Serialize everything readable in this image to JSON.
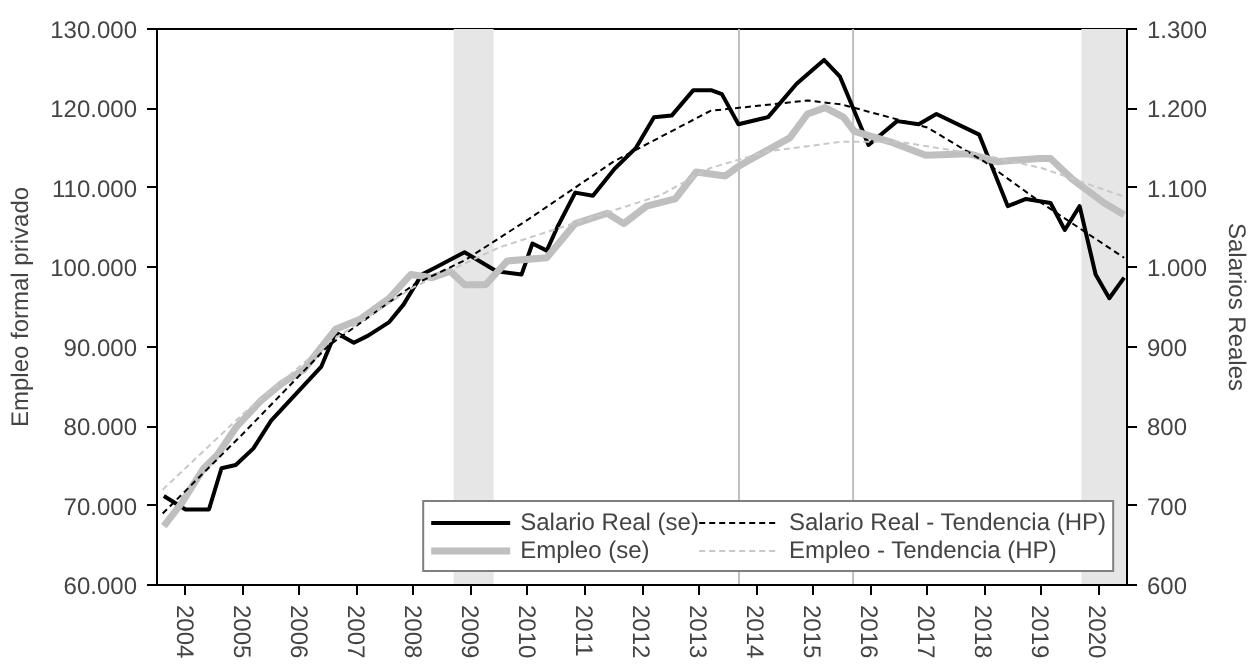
{
  "chart_data": {
    "type": "line",
    "xlabel": null,
    "ylabel": "Empleo formal privado",
    "y2label": "Salarios Reales",
    "xlim": [
      2004.0,
      2021.0
    ],
    "xticks": [
      {
        "value": 2004.5,
        "label": "2004"
      },
      {
        "value": 2005.5,
        "label": "2005"
      },
      {
        "value": 2006.5,
        "label": "2006"
      },
      {
        "value": 2007.5,
        "label": "2007"
      },
      {
        "value": 2008.5,
        "label": "2008"
      },
      {
        "value": 2009.5,
        "label": "2009"
      },
      {
        "value": 2010.5,
        "label": "2010"
      },
      {
        "value": 2011.5,
        "label": "2011"
      },
      {
        "value": 2012.5,
        "label": "2012"
      },
      {
        "value": 2013.5,
        "label": "2013"
      },
      {
        "value": 2014.5,
        "label": "2014"
      },
      {
        "value": 2015.5,
        "label": "2015"
      },
      {
        "value": 2016.5,
        "label": "2016"
      },
      {
        "value": 2017.5,
        "label": "2017"
      },
      {
        "value": 2018.5,
        "label": "2018"
      },
      {
        "value": 2019.5,
        "label": "2019"
      },
      {
        "value": 2020.5,
        "label": "2020"
      }
    ],
    "ylim": [
      60000,
      130000
    ],
    "yticks": [
      {
        "value": 60000,
        "label": "60.000"
      },
      {
        "value": 70000,
        "label": "70.000"
      },
      {
        "value": 80000,
        "label": "80.000"
      },
      {
        "value": 90000,
        "label": "90.000"
      },
      {
        "value": 100000,
        "label": "100.000"
      },
      {
        "value": 110000,
        "label": "110.000"
      },
      {
        "value": 120000,
        "label": "120.000"
      },
      {
        "value": 130000,
        "label": "130.000"
      }
    ],
    "y2lim": [
      600,
      1300
    ],
    "y2ticks": [
      600,
      700,
      800,
      900,
      {
        "value": 1000,
        "label": "1.000"
      },
      {
        "value": 1100,
        "label": "1.100"
      },
      {
        "value": 1200,
        "label": "1.200"
      },
      {
        "value": 1300,
        "label": "1.300"
      }
    ],
    "grid": false,
    "legend": "bottom right",
    "marker": "none",
    "bands": [
      {
        "axis": "x",
        "from": 2009.2,
        "to": 2009.9,
        "color": "#e6e6e6"
      },
      {
        "axis": "x",
        "from": 2020.2,
        "to": 2021.0,
        "color": "#e6e6e6"
      }
    ],
    "ref_lines": [
      {
        "axis": "x",
        "value": 2014.2,
        "color": "#c0c0c0"
      },
      {
        "axis": "x",
        "value": 2016.2,
        "color": "#c0c0c0"
      }
    ],
    "series": [
      {
        "name": "Salario Real (se)",
        "color": "#000000",
        "axis": "y2",
        "line_style": "solid",
        "x": [
          2004.12,
          2004.5,
          2004.91,
          2005.13,
          2005.38,
          2005.69,
          2006.0,
          2006.44,
          2006.88,
          2007.13,
          2007.45,
          2007.7,
          2008.07,
          2008.32,
          2008.64,
          2008.89,
          2009.39,
          2009.95,
          2010.39,
          2010.58,
          2010.83,
          2011.02,
          2011.33,
          2011.64,
          2012.02,
          2012.39,
          2012.71,
          2013.02,
          2013.4,
          2013.71,
          2013.9,
          2014.19,
          2014.71,
          2015.21,
          2015.69,
          2015.97,
          2016.47,
          2016.97,
          2017.35,
          2017.66,
          2018.41,
          2018.91,
          2019.23,
          2019.66,
          2019.91,
          2020.17,
          2020.45,
          2020.69,
          2020.95
        ],
        "values": [
          712,
          695,
          695,
          747,
          751,
          772,
          807,
          841,
          875,
          918,
          905,
          914,
          931,
          953,
          991,
          1000,
          1019,
          995,
          991,
          1030,
          1021,
          1051,
          1094,
          1090,
          1124,
          1150,
          1189,
          1191,
          1223,
          1223,
          1218,
          1180,
          1189,
          1231,
          1261,
          1240,
          1154,
          1184,
          1180,
          1193,
          1167,
          1077,
          1086,
          1081,
          1047,
          1077,
          991,
          961,
          987
        ]
      },
      {
        "name": "Empleo (se)",
        "color": "#bfbfbf",
        "line_style": "solid",
        "x": [
          2004.12,
          2004.44,
          2004.82,
          2005.06,
          2005.38,
          2005.82,
          2006.19,
          2006.57,
          2007.13,
          2007.57,
          2008.07,
          2008.45,
          2008.82,
          2009.14,
          2009.39,
          2009.76,
          2010.14,
          2010.83,
          2011.33,
          2011.89,
          2012.18,
          2012.58,
          2013.08,
          2013.45,
          2013.96,
          2014.21,
          2014.71,
          2015.09,
          2015.4,
          2015.71,
          2016.03,
          2016.22,
          2016.85,
          2017.47,
          2018.22,
          2018.72,
          2019.47,
          2019.66,
          2020.04,
          2020.6,
          2020.95
        ],
        "values": [
          67400,
          70400,
          74700,
          76400,
          79800,
          83200,
          85400,
          87100,
          92200,
          93500,
          96100,
          99100,
          98700,
          99500,
          97800,
          97800,
          100800,
          101200,
          105500,
          106800,
          105500,
          107700,
          108600,
          112000,
          111500,
          112800,
          114800,
          116300,
          119300,
          120100,
          118900,
          117100,
          115800,
          114100,
          114300,
          113300,
          113700,
          113700,
          111100,
          108100,
          106600
        ]
      },
      {
        "name": "Salario Real - Tendencia (HP)",
        "color": "#000000",
        "axis": "y2",
        "line_style": "dashed",
        "x": [
          2004.1,
          2005.5,
          2007.0,
          2008.5,
          2009.4,
          2010.5,
          2012.0,
          2013.7,
          2015.4,
          2016.0,
          2017.5,
          2018.5,
          2019.5,
          2020.95
        ],
        "values": [
          690,
          790,
          901,
          978,
          1009,
          1060,
          1133,
          1197,
          1210,
          1205,
          1176,
          1133,
          1081,
          1012
        ]
      },
      {
        "name": "Empleo - Tendencia (HP)",
        "color": "#c8c8c8",
        "line_style": "dashed",
        "x": [
          2004.1,
          2005.5,
          2007.0,
          2008.5,
          2010.0,
          2011.5,
          2012.8,
          2013.7,
          2014.7,
          2016.0,
          2017.0,
          2018.5,
          2019.5,
          2020.95
        ],
        "values": [
          72000,
          81500,
          90500,
          97500,
          102500,
          106000,
          109000,
          112500,
          114600,
          115800,
          115800,
          114100,
          112500,
          108900
        ]
      }
    ]
  }
}
